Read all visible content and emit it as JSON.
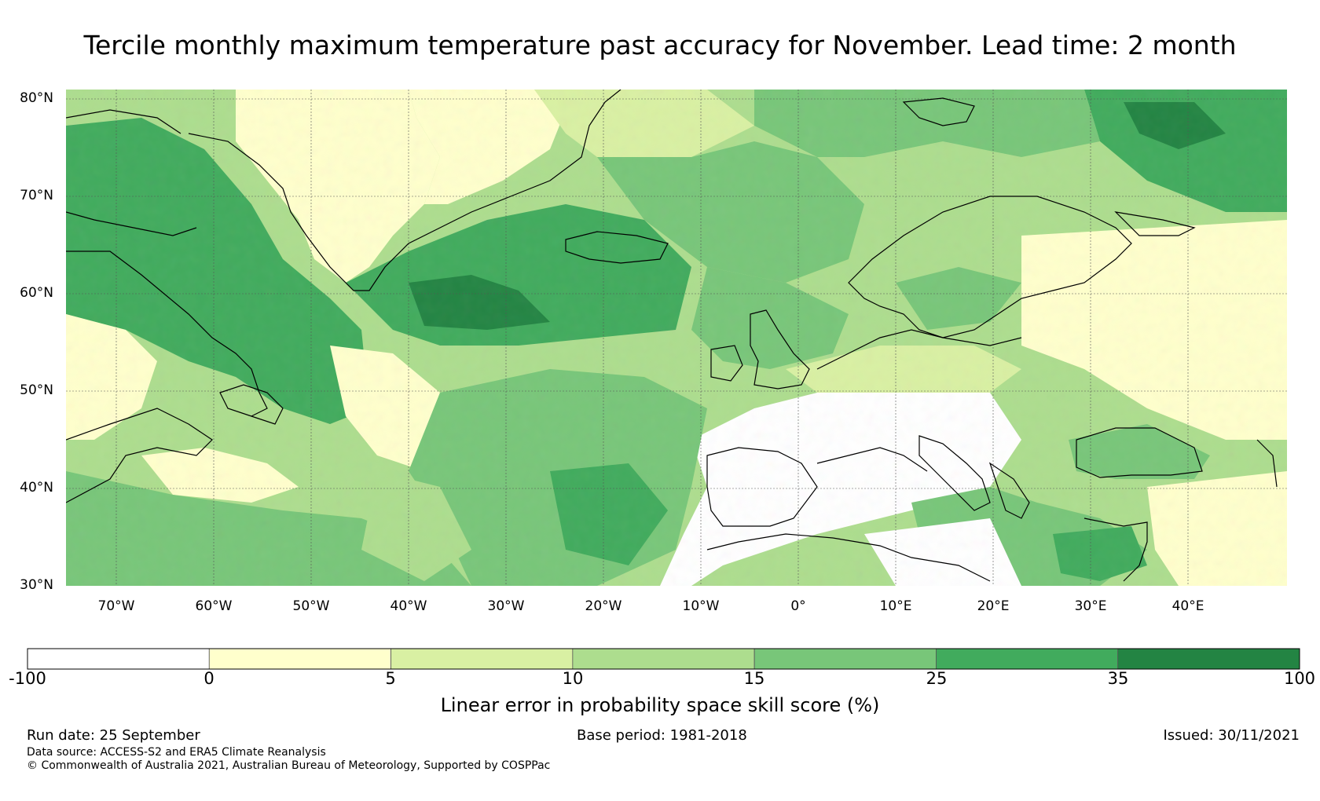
{
  "title": "Tercile monthly maximum temperature past accuracy for November. Lead time: 2 month",
  "latitude_labels": [
    "80°N",
    "70°N",
    "60°N",
    "50°N",
    "40°N",
    "30°N"
  ],
  "longitude_labels": [
    "70°W",
    "60°W",
    "50°W",
    "40°W",
    "30°W",
    "20°W",
    "10°W",
    "0°",
    "10°E",
    "20°E",
    "30°E",
    "40°E"
  ],
  "colorbar": {
    "bins": [
      {
        "from": -100,
        "to": 0,
        "color": "#ffffff"
      },
      {
        "from": 0,
        "to": 5,
        "color": "#ffffcc"
      },
      {
        "from": 5,
        "to": 10,
        "color": "#d9f0a3"
      },
      {
        "from": 10,
        "to": 15,
        "color": "#addd8e"
      },
      {
        "from": 15,
        "to": 25,
        "color": "#78c679"
      },
      {
        "from": 25,
        "to": 35,
        "color": "#41ab5d"
      },
      {
        "from": 35,
        "to": 100,
        "color": "#238443"
      }
    ],
    "tick_labels": [
      "-100",
      "0",
      "5",
      "10",
      "15",
      "25",
      "35",
      "100"
    ],
    "label": "Linear error in probability space skill score (%)"
  },
  "map_extent": {
    "lon_min": -75,
    "lon_max": 50,
    "lat_min": 30,
    "lat_max": 81
  },
  "footer": {
    "run_date": "Run date: 25 September",
    "base_period": "Base period: 1981-2018",
    "issued": "Issued: 30/11/2021",
    "data_source": "Data source: ACCESS-S2 and ERA5 Climate Reanalysis",
    "copyright": "© Commonwealth of Australia 2021, Australian Bureau of Meteorology, Supported by COSPPac"
  }
}
